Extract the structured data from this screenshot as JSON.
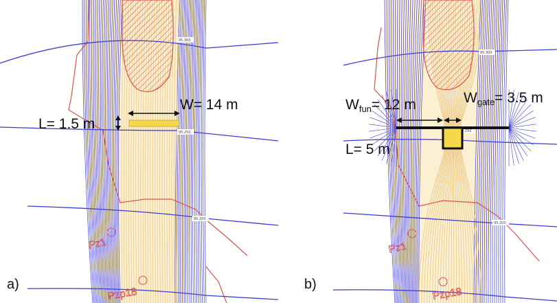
{
  "panel_a": {
    "letter": "a)",
    "label_width": "W= 14 m",
    "label_length": "L= 1.5 m",
    "contour_labels": [
      "95.300",
      "95.250",
      "95.200"
    ],
    "site_labels": [
      "Pz1",
      "Pzp18"
    ]
  },
  "panel_b": {
    "letter": "b)",
    "label_w_fun_main": "W",
    "label_w_fun_sub": "fun",
    "label_w_fun_value": "= 12 m",
    "label_w_gate_main": "W",
    "label_w_gate_sub": "gate",
    "label_w_gate_value": "= 3.5 m",
    "label_length": "L= 5 m",
    "contour_labels": [
      "95.300",
      "95.250",
      "95.200"
    ],
    "site_labels": [
      "Pz1",
      "Pzp18"
    ]
  },
  "colors": {
    "contour_blue": "#3b3bd6",
    "contour_yellow": "#e8c27a",
    "river_fill": "#fbf0d2",
    "hatch_red": "#d9534f",
    "structure_yellow": "#f6d94a"
  }
}
